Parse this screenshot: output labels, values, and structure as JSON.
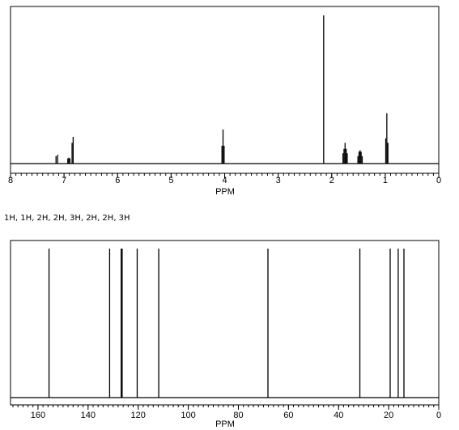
{
  "integration_text": "1H, 1H, 2H, 2H, 3H, 2H, 2H, 3H",
  "chart_data": [
    {
      "type": "line",
      "title": "",
      "xlabel": "PPM",
      "ylabel": "",
      "xlim": [
        8,
        0
      ],
      "x_reversed": true,
      "grid": false,
      "tick_labels": [
        "8",
        "7",
        "6",
        "5",
        "4",
        "3",
        "2",
        "1",
        "0"
      ],
      "peaks": [
        {
          "x": 7.15,
          "y": 0.05
        },
        {
          "x": 7.12,
          "y": 0.06
        },
        {
          "x": 6.93,
          "y": 0.035
        },
        {
          "x": 6.91,
          "y": 0.04
        },
        {
          "x": 6.89,
          "y": 0.035
        },
        {
          "x": 6.85,
          "y": 0.14
        },
        {
          "x": 6.83,
          "y": 0.18
        },
        {
          "x": 4.05,
          "y": 0.12
        },
        {
          "x": 4.03,
          "y": 0.23
        },
        {
          "x": 4.01,
          "y": 0.12
        },
        {
          "x": 2.15,
          "y": 1.0
        },
        {
          "x": 1.79,
          "y": 0.07
        },
        {
          "x": 1.77,
          "y": 0.1
        },
        {
          "x": 1.75,
          "y": 0.14
        },
        {
          "x": 1.73,
          "y": 0.1
        },
        {
          "x": 1.71,
          "y": 0.07
        },
        {
          "x": 1.51,
          "y": 0.05
        },
        {
          "x": 1.49,
          "y": 0.08
        },
        {
          "x": 1.47,
          "y": 0.09
        },
        {
          "x": 1.45,
          "y": 0.08
        },
        {
          "x": 1.43,
          "y": 0.05
        },
        {
          "x": 0.99,
          "y": 0.17
        },
        {
          "x": 0.97,
          "y": 0.34
        },
        {
          "x": 0.95,
          "y": 0.14
        }
      ]
    },
    {
      "type": "line",
      "title": "",
      "xlabel": "PPM",
      "ylabel": "",
      "xlim": [
        170,
        0
      ],
      "x_reversed": true,
      "grid": false,
      "tick_labels": [
        "160",
        "140",
        "120",
        "100",
        "80",
        "60",
        "40",
        "20",
        "0"
      ],
      "peaks": [
        {
          "x": 155.6,
          "y": 1.0
        },
        {
          "x": 131.4,
          "y": 1.0
        },
        {
          "x": 126.8,
          "y": 1.0
        },
        {
          "x": 126.4,
          "y": 1.0
        },
        {
          "x": 120.4,
          "y": 1.0
        },
        {
          "x": 111.8,
          "y": 1.0
        },
        {
          "x": 68.2,
          "y": 1.0
        },
        {
          "x": 31.5,
          "y": 1.0
        },
        {
          "x": 19.4,
          "y": 1.0
        },
        {
          "x": 16.2,
          "y": 1.0
        },
        {
          "x": 13.9,
          "y": 1.0
        }
      ]
    }
  ]
}
